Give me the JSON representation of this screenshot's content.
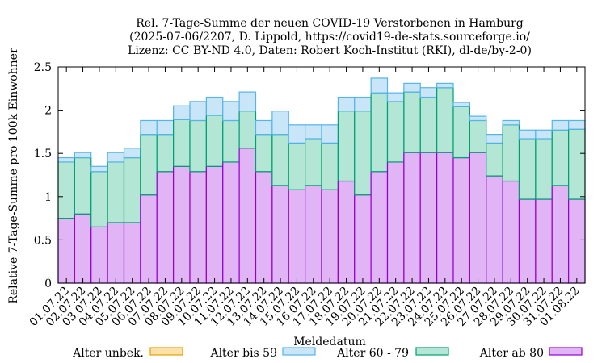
{
  "chart_data": {
    "type": "bar",
    "title_lines": [
      "Rel. 7-Tage-Summe der neuen COVID-19 Verstorbenen in Hamburg",
      "(2025-07-06/2207, D. Lippold, https://covid19-de-stats.sourceforge.io/",
      "Lizenz: CC BY-ND 4.0, Daten: Robert Koch-Institut (RKI), dl-de/by-2-0)"
    ],
    "xlabel": "Meldedatum",
    "ylabel": "Relative 7-Tage-Summe pro 100k Einwohner",
    "ylim": [
      0,
      2.5
    ],
    "yticks": [
      "0",
      "0.5",
      "1",
      "1.5",
      "2",
      "2.5"
    ],
    "stacked": true,
    "categories": [
      "01.07.22",
      "02.07.22",
      "03.07.22",
      "04.07.22",
      "05.07.22",
      "06.07.22",
      "07.07.22",
      "08.07.22",
      "09.07.22",
      "10.07.22",
      "11.07.22",
      "12.07.22",
      "13.07.22",
      "14.07.22",
      "15.07.22",
      "16.07.22",
      "17.07.22",
      "18.07.22",
      "19.07.22",
      "20.07.22",
      "21.07.22",
      "22.07.22",
      "23.07.22",
      "24.07.22",
      "25.07.22",
      "26.07.22",
      "27.07.22",
      "28.07.22",
      "29.07.22",
      "30.07.22",
      "31.07.22",
      "01.08.22"
    ],
    "series": [
      {
        "name": "Alter ab 80",
        "fill": "#e0b4f5",
        "stroke": "#9400d3",
        "values": [
          0.75,
          0.8,
          0.65,
          0.7,
          0.7,
          1.02,
          1.29,
          1.35,
          1.29,
          1.35,
          1.4,
          1.56,
          1.29,
          1.13,
          1.08,
          1.13,
          1.08,
          1.18,
          1.02,
          1.29,
          1.4,
          1.51,
          1.51,
          1.51,
          1.45,
          1.51,
          1.24,
          1.18,
          0.97,
          0.97,
          1.13,
          0.97
        ]
      },
      {
        "name": "Alter 60 - 79",
        "fill": "#b3e6d4",
        "stroke": "#009e73",
        "values": [
          0.65,
          0.65,
          0.64,
          0.7,
          0.75,
          0.7,
          0.43,
          0.54,
          0.59,
          0.59,
          0.48,
          0.43,
          0.43,
          0.59,
          0.54,
          0.54,
          0.54,
          0.81,
          0.97,
          0.91,
          0.7,
          0.7,
          0.64,
          0.75,
          0.59,
          0.37,
          0.38,
          0.65,
          0.7,
          0.7,
          0.64,
          0.81
        ]
      },
      {
        "name": "Alter bis 59",
        "fill": "#c8e6f8",
        "stroke": "#56b4e9",
        "values": [
          0.05,
          0.06,
          0.06,
          0.11,
          0.11,
          0.16,
          0.16,
          0.16,
          0.22,
          0.21,
          0.22,
          0.22,
          0.16,
          0.27,
          0.21,
          0.16,
          0.21,
          0.16,
          0.16,
          0.17,
          0.1,
          0.1,
          0.11,
          0.05,
          0.05,
          0.05,
          0.1,
          0.05,
          0.1,
          0.1,
          0.11,
          0.1
        ]
      },
      {
        "name": "Alter unbek.",
        "fill": "#fde1a9",
        "stroke": "#e69f00",
        "values": [
          0,
          0,
          0,
          0,
          0,
          0,
          0,
          0,
          0,
          0,
          0,
          0,
          0,
          0,
          0,
          0,
          0,
          0,
          0,
          0,
          0,
          0,
          0,
          0,
          0,
          0,
          0,
          0,
          0,
          0,
          0,
          0
        ]
      }
    ],
    "legend_order": [
      "Alter unbek.",
      "Alter bis 59",
      "Alter 60 - 79",
      "Alter ab 80"
    ],
    "legend_placement": "bottom",
    "grid": false
  }
}
